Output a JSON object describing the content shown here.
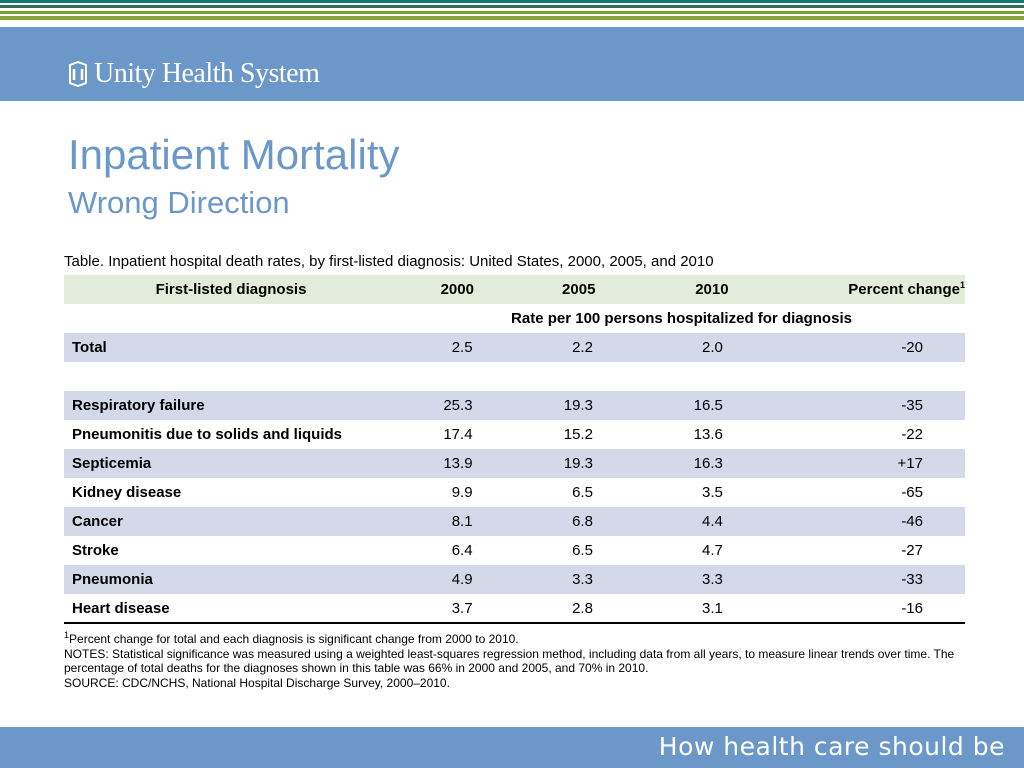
{
  "brand": {
    "name": "Unity Health System",
    "tagline": "How health care should be",
    "colors": {
      "accent": "#6c97c9",
      "band_row": "#d3d9e8",
      "header_row": "#e3ecd9"
    }
  },
  "slide": {
    "title": "Inpatient Mortality",
    "subtitle": "Wrong Direction"
  },
  "table": {
    "caption": "Table. Inpatient hospital death rates, by first-listed diagnosis: United States, 2000, 2005, and 2010",
    "headers": {
      "diagnosis": "First-listed diagnosis",
      "y2000": "2000",
      "y2005": "2005",
      "y2010": "2010",
      "pct": "Percent change",
      "pct_sup": "1"
    },
    "unit_label": "Rate per 100 persons hospitalized for diagnosis",
    "total": {
      "label": "Total",
      "y2000": "2.5",
      "y2005": "2.2",
      "y2010": "2.0",
      "pct": "-20"
    },
    "rows": [
      {
        "label": "Respiratory failure",
        "y2000": "25.3",
        "y2005": "19.3",
        "y2010": "16.5",
        "pct": "-35"
      },
      {
        "label": "Pneumonitis due to solids and liquids",
        "y2000": "17.4",
        "y2005": "15.2",
        "y2010": "13.6",
        "pct": "-22"
      },
      {
        "label": "Septicemia",
        "y2000": "13.9",
        "y2005": "19.3",
        "y2010": "16.3",
        "pct": "+17"
      },
      {
        "label": "Kidney disease",
        "y2000": "9.9",
        "y2005": "6.5",
        "y2010": "3.5",
        "pct": "-65"
      },
      {
        "label": "Cancer",
        "y2000": "8.1",
        "y2005": "6.8",
        "y2010": "4.4",
        "pct": "-46"
      },
      {
        "label": "Stroke",
        "y2000": "6.4",
        "y2005": "6.5",
        "y2010": "4.7",
        "pct": "-27"
      },
      {
        "label": "Pneumonia",
        "y2000": "4.9",
        "y2005": "3.3",
        "y2010": "3.3",
        "pct": "-33"
      },
      {
        "label": "Heart disease",
        "y2000": "3.7",
        "y2005": "2.8",
        "y2010": "3.1",
        "pct": "-16"
      }
    ]
  },
  "notes": {
    "footnote_sup": "1",
    "footnote": "Percent change for total and each diagnosis is significant change from 2000 to 2010.",
    "notes": "NOTES: Statistical significance was measured using a weighted least-squares regression method, including data from all years, to measure linear trends over time. The percentage of total deaths for the diagnoses shown in this table was 66% in 2000 and 2005, and 70% in 2010.",
    "source": "SOURCE: CDC/NCHS, National Hospital Discharge Survey, 2000–2010."
  }
}
